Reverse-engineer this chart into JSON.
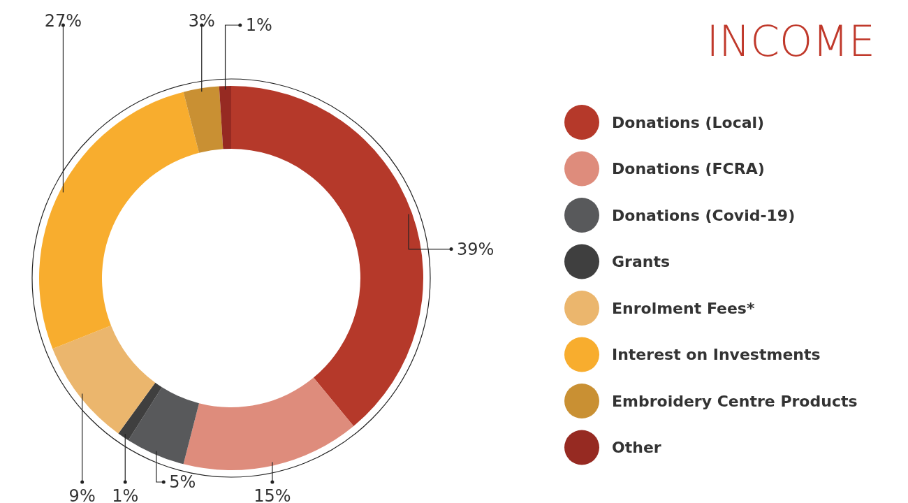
{
  "chart_data": {
    "type": "donut",
    "title": "INCOME",
    "categories": [
      "Donations (Local)",
      "Donations (FCRA)",
      "Donations (Covid-19)",
      "Grants",
      "Enrolment Fees*",
      "Interest on Investments",
      "Embroidery Centre Products",
      "Other"
    ],
    "values": [
      39,
      15,
      5,
      1,
      9,
      27,
      3,
      1
    ],
    "colors": [
      "#b5392a",
      "#de8c7c",
      "#58595b",
      "#3f3f3f",
      "#ebb66d",
      "#f8ad2e",
      "#c99033",
      "#962a22"
    ],
    "value_labels": [
      "39%",
      "15%",
      "5%",
      "1%",
      "9%",
      "27%",
      "3%",
      "1%"
    ],
    "legend": "right"
  }
}
